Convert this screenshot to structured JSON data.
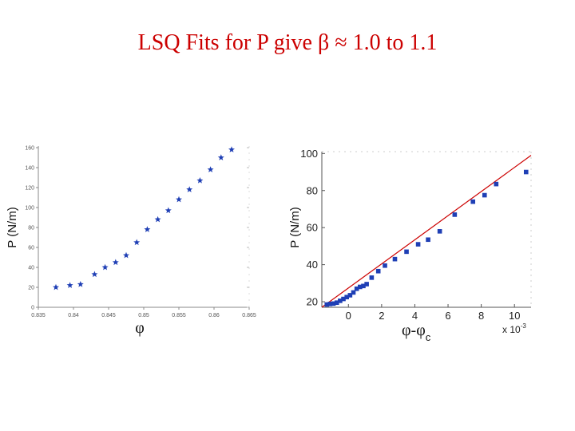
{
  "slide": {
    "title": "LSQ Fits for P give β ≈ 1.0 to 1.1"
  },
  "chart_data": [
    {
      "type": "scatter",
      "xlabel": "φ",
      "ylabel": "P (N/m)",
      "x_ticks": [
        "0.835",
        "0.84",
        "0.845",
        "0.85",
        "0.855",
        "0.86",
        "0.865"
      ],
      "y_ticks": [
        "0",
        "20",
        "40",
        "60",
        "80",
        "100",
        "120",
        "140",
        "160"
      ],
      "xlim": [
        0.835,
        0.865
      ],
      "ylim": [
        0,
        160
      ],
      "marker": "star",
      "marker_color": "#1f3fb5",
      "series": [
        {
          "x": [
            0.8375,
            0.8395,
            0.841,
            0.843,
            0.8445,
            0.846,
            0.8475,
            0.849,
            0.8505,
            0.852,
            0.8535,
            0.855,
            0.8565,
            0.858,
            0.8595,
            0.861,
            0.8625
          ],
          "y": [
            20,
            22,
            23,
            33,
            40,
            45,
            52,
            65,
            78,
            88,
            97,
            108,
            118,
            127,
            138,
            150,
            158
          ]
        }
      ]
    },
    {
      "type": "scatter",
      "xlabel": "φ-φ",
      "xlabel_sub": "c",
      "ylabel": "P (N/m)",
      "x_ticks": [
        "0",
        "2",
        "4",
        "6",
        "8",
        "10"
      ],
      "y_ticks": [
        "20",
        "40",
        "60",
        "80",
        "100"
      ],
      "x_exponent": "x 10",
      "x_exponent_power": "-3",
      "xlim": [
        -1.6,
        11
      ],
      "ylim": [
        17,
        101
      ],
      "marker": "square",
      "marker_color": "#1f3fb5",
      "fit_color": "#cc0000",
      "fit_line": {
        "x": [
          -1.6,
          11
        ],
        "y": [
          17,
          99
        ]
      },
      "series": [
        {
          "x": [
            -1.3,
            -1.1,
            -0.9,
            -0.7,
            -0.5,
            -0.3,
            -0.1,
            0.1,
            0.3,
            0.5,
            0.7,
            0.9,
            1.1,
            1.4,
            1.8,
            2.2,
            2.8,
            3.5,
            4.2,
            4.8,
            5.5,
            6.4,
            7.5,
            8.2,
            8.9,
            10.7
          ],
          "y": [
            18.5,
            18.8,
            19,
            19.5,
            20.5,
            21.5,
            22.5,
            23.5,
            25,
            27,
            28,
            28.5,
            29.5,
            33,
            36.5,
            39.5,
            43,
            47,
            51,
            53.5,
            58,
            67,
            74,
            77.5,
            83.5,
            90
          ]
        }
      ]
    }
  ]
}
